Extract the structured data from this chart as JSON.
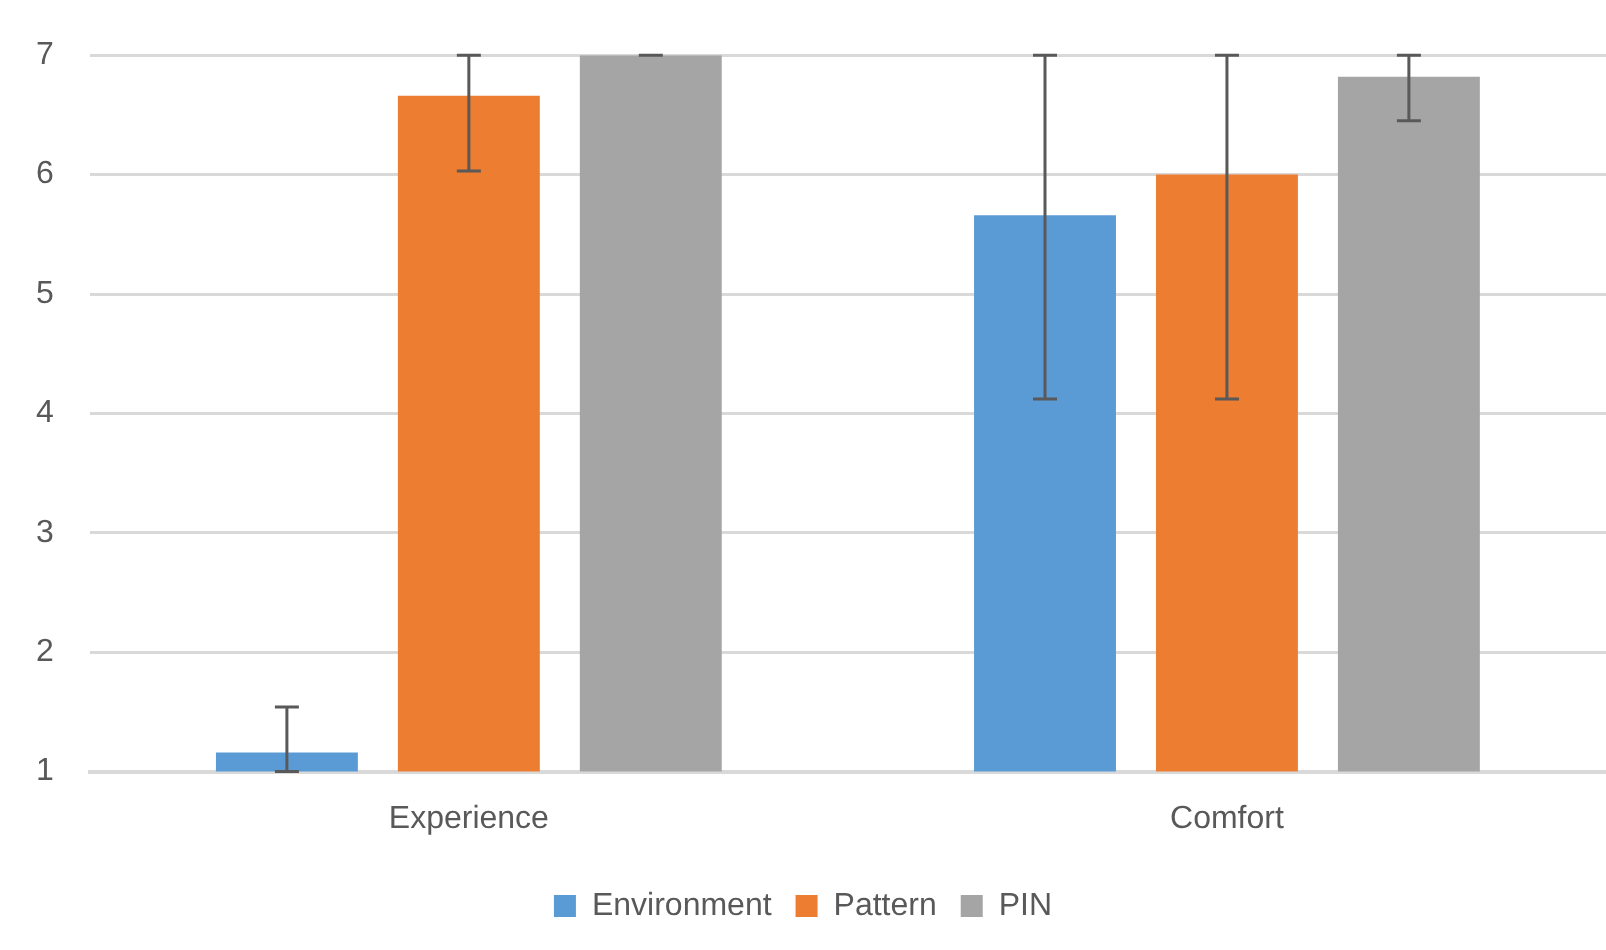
{
  "chart_data": {
    "type": "bar",
    "categories": [
      "Experience",
      "Comfort"
    ],
    "series": [
      {
        "name": "Environment",
        "color": "#5b9bd5",
        "values": [
          1.16,
          5.66
        ],
        "errors": [
          [
            1,
            1.54
          ],
          [
            4.12,
            7
          ]
        ]
      },
      {
        "name": "Pattern",
        "color": "#ed7d31",
        "values": [
          6.66,
          6.0
        ],
        "errors": [
          [
            6.03,
            7
          ],
          [
            4.12,
            7
          ]
        ]
      },
      {
        "name": "PIN",
        "color": "#a5a5a5",
        "values": [
          7,
          6.82
        ],
        "errors": [
          [
            7,
            7
          ],
          [
            6.45,
            7
          ]
        ]
      }
    ],
    "ylim": [
      1,
      7
    ],
    "yticks": [
      1,
      2,
      3,
      4,
      5,
      6,
      7
    ],
    "grid": "y",
    "legend": "bottom"
  }
}
